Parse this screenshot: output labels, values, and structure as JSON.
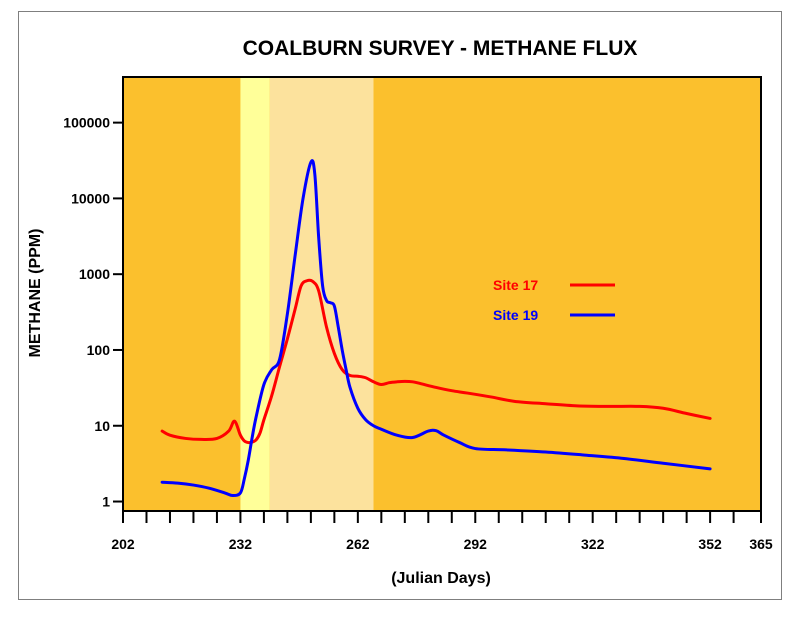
{
  "chart_data": {
    "type": "line",
    "title": "COALBURN SURVEY - METHANE FLUX",
    "xlabel": "(Julian Days)",
    "ylabel": "METHANE (PPM)",
    "xlim": [
      202,
      365
    ],
    "ylim": [
      0.75,
      400000
    ],
    "yscale": "log",
    "xticks": [
      202,
      232,
      262,
      292,
      322,
      352,
      365
    ],
    "yticks": [
      1,
      10,
      100,
      1000,
      10000,
      100000
    ],
    "ytick_labels": [
      "1",
      "10",
      "100",
      "1000",
      "10000",
      "100000"
    ],
    "grid": false,
    "legend_position": "center-right",
    "background_color": "#fbc02d",
    "highlight_bands": [
      {
        "x": [
          232,
          239.5
        ],
        "color": "#ffff99"
      },
      {
        "x": [
          239.5,
          266
        ],
        "color": "#fce29d"
      }
    ],
    "series": [
      {
        "name": "Site 17",
        "color": "#ff0000",
        "x": [
          212,
          214,
          218,
          222,
          226,
          229,
          230.5,
          232,
          233,
          234,
          235,
          236,
          237,
          238,
          240,
          242,
          244,
          246,
          247.5,
          249,
          250.5,
          252,
          254,
          256,
          258,
          260,
          262,
          264,
          266,
          268,
          270,
          272,
          274,
          276,
          278,
          282,
          286,
          290,
          296,
          302,
          310,
          318,
          326,
          334,
          340,
          346,
          352
        ],
        "y": [
          8.5,
          7.5,
          6.8,
          6.6,
          6.8,
          8.5,
          11.5,
          7.5,
          6.3,
          6,
          6.1,
          6.5,
          8,
          12,
          25,
          60,
          140,
          350,
          700,
          820,
          800,
          600,
          200,
          90,
          55,
          46,
          45,
          43,
          38,
          35,
          37,
          38,
          38.5,
          38,
          36,
          32,
          29,
          27,
          24,
          21,
          19.5,
          18.3,
          18,
          18,
          17,
          14.5,
          12.5
        ]
      },
      {
        "name": "Site 19",
        "color": "#0000ff",
        "x": [
          212,
          216,
          220,
          224,
          228,
          230,
          232,
          233,
          234,
          235,
          236,
          238,
          240,
          242,
          244,
          246,
          248,
          250,
          251,
          252,
          253,
          254,
          255,
          256,
          257,
          258,
          259,
          260,
          262,
          264,
          266,
          268,
          272,
          276,
          280,
          282,
          284,
          288,
          292,
          300,
          310,
          320,
          330,
          340,
          352
        ],
        "y": [
          1.8,
          1.75,
          1.65,
          1.5,
          1.3,
          1.2,
          1.3,
          2,
          3.5,
          7,
          13,
          35,
          55,
          75,
          300,
          1800,
          10000,
          30000,
          21000,
          3000,
          700,
          450,
          420,
          380,
          200,
          100,
          55,
          32,
          17,
          12,
          10,
          9,
          7.5,
          7,
          8.5,
          8.6,
          7.5,
          6,
          5,
          4.8,
          4.5,
          4.1,
          3.7,
          3.2,
          2.7
        ]
      }
    ]
  }
}
